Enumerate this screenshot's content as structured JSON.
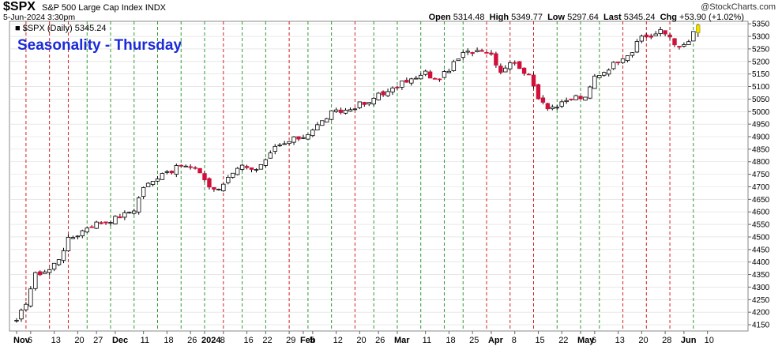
{
  "header": {
    "symbol": "$SPX",
    "description": "S&P 500 Large Cap Index",
    "exchange": "INDX",
    "watermark": "@StockCharts.com",
    "date": "5-Jun-2024 3:30pm",
    "open_label": "Open",
    "open": "5314.48",
    "high_label": "High",
    "high": "5349.77",
    "low_label": "Low",
    "low": "5297.64",
    "last_label": "Last",
    "last": "5345.24",
    "chg_label": "Chg",
    "chg": "+53.90 (+1.02%)",
    "legend_text": "$SPX (Daily) 5345.24"
  },
  "overlay_title": "Seasonality - Thursday",
  "colors": {
    "up": "#000000",
    "down": "#d0103a",
    "last": "#f0e000",
    "green_line": "#2e9a2e",
    "red_line": "#d41f1f",
    "grid": "#d9d9d9"
  },
  "chart_data": {
    "type": "candlestick",
    "title": "Seasonality - Thursday",
    "ylim": [
      4125,
      5360
    ],
    "y_ticks": [
      4150,
      4200,
      4250,
      4300,
      4350,
      4400,
      4450,
      4500,
      4550,
      4600,
      4650,
      4700,
      4750,
      4800,
      4850,
      4900,
      4950,
      5000,
      5050,
      5100,
      5150,
      5200,
      5250,
      5300,
      5350
    ],
    "x_labels": [
      {
        "label": "Nov",
        "i": 0,
        "bold": true
      },
      {
        "label": "6",
        "i": 3
      },
      {
        "label": "13",
        "i": 8
      },
      {
        "label": "20",
        "i": 13
      },
      {
        "label": "27",
        "i": 17
      },
      {
        "label": "Dec",
        "i": 21,
        "bold": true
      },
      {
        "label": "11",
        "i": 27
      },
      {
        "label": "18",
        "i": 32
      },
      {
        "label": "26",
        "i": 37
      },
      {
        "label": "2024",
        "i": 40,
        "bold": true
      },
      {
        "label": "8",
        "i": 44
      },
      {
        "label": "16",
        "i": 49
      },
      {
        "label": "22",
        "i": 53
      },
      {
        "label": "29",
        "i": 58
      },
      {
        "label": "Feb",
        "i": 61,
        "bold": true
      },
      {
        "label": "5",
        "i": 63
      },
      {
        "label": "12",
        "i": 68
      },
      {
        "label": "20",
        "i": 73
      },
      {
        "label": "26",
        "i": 77
      },
      {
        "label": "Mar",
        "i": 81,
        "bold": true
      },
      {
        "label": "11",
        "i": 87
      },
      {
        "label": "18",
        "i": 92
      },
      {
        "label": "25",
        "i": 97
      },
      {
        "label": "Apr",
        "i": 101,
        "bold": true
      },
      {
        "label": "8",
        "i": 106
      },
      {
        "label": "15",
        "i": 111
      },
      {
        "label": "22",
        "i": 116
      },
      {
        "label": "May",
        "i": 120,
        "bold": true
      },
      {
        "label": "6",
        "i": 123
      },
      {
        "label": "13",
        "i": 128
      },
      {
        "label": "20",
        "i": 133
      },
      {
        "label": "28",
        "i": 138
      },
      {
        "label": "Jun",
        "i": 142,
        "bold": true
      },
      {
        "label": "10",
        "i": 147
      }
    ],
    "thursday_lines": [
      {
        "i": 2,
        "color": "red"
      },
      {
        "i": 7,
        "color": "red"
      },
      {
        "i": 11,
        "color": "red"
      },
      {
        "i": 15,
        "color": "green"
      },
      {
        "i": 20,
        "color": "green"
      },
      {
        "i": 25,
        "color": "green"
      },
      {
        "i": 30,
        "color": "green"
      },
      {
        "i": 35,
        "color": "green"
      },
      {
        "i": 40,
        "color": "green"
      },
      {
        "i": 44,
        "color": "red"
      },
      {
        "i": 48,
        "color": "green"
      },
      {
        "i": 53,
        "color": "green"
      },
      {
        "i": 58,
        "color": "red"
      },
      {
        "i": 62,
        "color": "green"
      },
      {
        "i": 67,
        "color": "green"
      },
      {
        "i": 72,
        "color": "red"
      },
      {
        "i": 76,
        "color": "green"
      },
      {
        "i": 81,
        "color": "green"
      },
      {
        "i": 86,
        "color": "green"
      },
      {
        "i": 91,
        "color": "green"
      },
      {
        "i": 95,
        "color": "green"
      },
      {
        "i": 100,
        "color": "red"
      },
      {
        "i": 105,
        "color": "red"
      },
      {
        "i": 110,
        "color": "red"
      },
      {
        "i": 115,
        "color": "green"
      },
      {
        "i": 120,
        "color": "green"
      },
      {
        "i": 124,
        "color": "green"
      },
      {
        "i": 129,
        "color": "red"
      },
      {
        "i": 134,
        "color": "red"
      },
      {
        "i": 139,
        "color": "red"
      },
      {
        "i": 144,
        "color": "green"
      }
    ],
    "anchors": [
      [
        0,
        4160
      ],
      [
        2,
        4240
      ],
      [
        4,
        4350
      ],
      [
        7,
        4370
      ],
      [
        9,
        4415
      ],
      [
        11,
        4490
      ],
      [
        13,
        4510
      ],
      [
        15,
        4540
      ],
      [
        17,
        4555
      ],
      [
        19,
        4560
      ],
      [
        21,
        4575
      ],
      [
        23,
        4590
      ],
      [
        25,
        4610
      ],
      [
        27,
        4700
      ],
      [
        29,
        4720
      ],
      [
        31,
        4760
      ],
      [
        33,
        4765
      ],
      [
        35,
        4785
      ],
      [
        37,
        4775
      ],
      [
        39,
        4760
      ],
      [
        41,
        4700
      ],
      [
        43,
        4685
      ],
      [
        45,
        4740
      ],
      [
        47,
        4780
      ],
      [
        49,
        4785
      ],
      [
        51,
        4765
      ],
      [
        53,
        4800
      ],
      [
        55,
        4855
      ],
      [
        57,
        4870
      ],
      [
        59,
        4890
      ],
      [
        61,
        4900
      ],
      [
        63,
        4930
      ],
      [
        65,
        4960
      ],
      [
        67,
        4995
      ],
      [
        69,
        5000
      ],
      [
        71,
        5010
      ],
      [
        73,
        5030
      ],
      [
        75,
        5030
      ],
      [
        77,
        5075
      ],
      [
        79,
        5075
      ],
      [
        81,
        5100
      ],
      [
        83,
        5125
      ],
      [
        85,
        5130
      ],
      [
        87,
        5155
      ],
      [
        89,
        5125
      ],
      [
        91,
        5150
      ],
      [
        93,
        5190
      ],
      [
        95,
        5230
      ],
      [
        97,
        5240
      ],
      [
        99,
        5250
      ],
      [
        101,
        5230
      ],
      [
        103,
        5160
      ],
      [
        105,
        5200
      ],
      [
        107,
        5180
      ],
      [
        109,
        5140
      ],
      [
        111,
        5060
      ],
      [
        113,
        5020
      ],
      [
        115,
        5020
      ],
      [
        117,
        5040
      ],
      [
        119,
        5060
      ],
      [
        121,
        5050
      ],
      [
        123,
        5140
      ],
      [
        125,
        5160
      ],
      [
        127,
        5190
      ],
      [
        129,
        5220
      ],
      [
        131,
        5240
      ],
      [
        133,
        5300
      ],
      [
        135,
        5300
      ],
      [
        137,
        5320
      ],
      [
        139,
        5300
      ],
      [
        141,
        5250
      ],
      [
        143,
        5280
      ],
      [
        145,
        5345
      ]
    ],
    "last_bar": {
      "open": 5314.48,
      "high": 5349.77,
      "low": 5297.64,
      "close": 5345.24
    }
  }
}
